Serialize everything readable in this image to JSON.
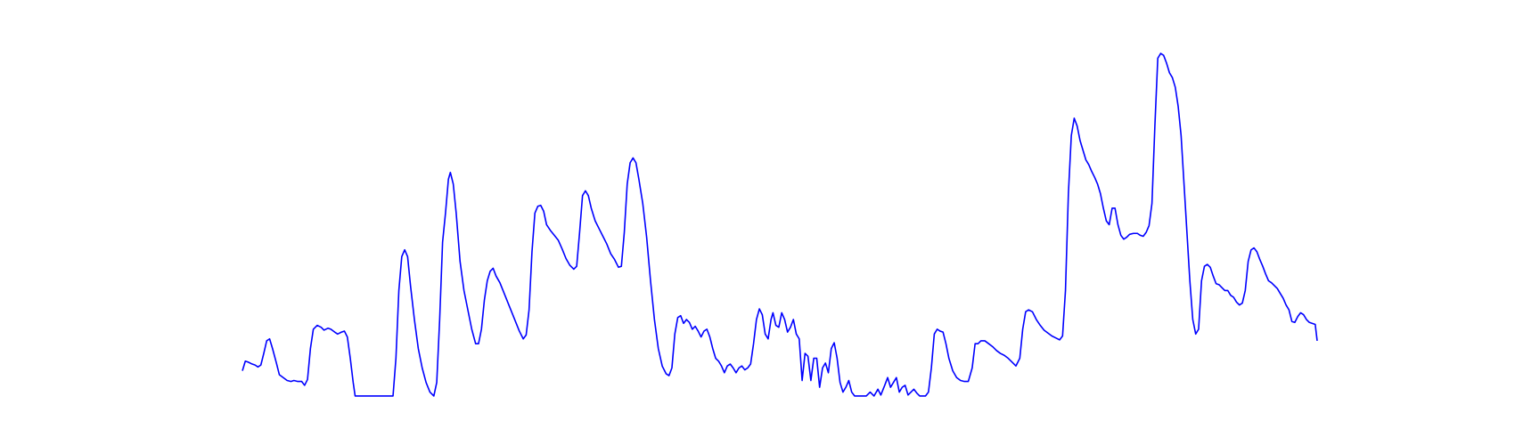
{
  "chart_data": {
    "type": "line",
    "color": "#0000ff",
    "x": [
      250,
      253,
      256,
      260,
      263,
      266,
      269,
      272,
      275,
      278,
      281,
      285,
      288,
      292,
      296,
      300,
      303,
      307,
      311,
      314,
      317,
      320,
      323,
      327,
      331,
      334,
      338,
      341,
      345,
      348,
      352,
      355,
      358,
      361,
      364,
      366,
      370,
      380,
      395,
      405,
      408,
      411,
      414,
      417,
      420,
      423,
      427,
      431,
      435,
      439,
      443,
      447,
      450,
      453,
      456,
      459,
      462,
      464,
      467,
      470,
      474,
      478,
      482,
      486,
      490,
      493,
      496,
      499,
      502,
      505,
      508,
      511,
      515,
      519,
      523,
      527,
      531,
      535,
      539,
      542,
      545,
      548,
      551,
      554,
      557,
      560,
      563,
      567,
      571,
      575,
      579,
      583,
      587,
      591,
      594,
      597,
      600,
      603,
      606,
      609,
      613,
      617,
      621,
      625,
      629,
      633,
      637,
      640,
      643,
      646,
      649,
      652,
      655,
      658,
      662,
      666,
      670,
      674,
      678,
      682,
      686,
      689,
      692,
      695,
      698,
      701,
      704,
      707,
      710,
      713,
      716,
      719,
      722,
      725,
      728,
      731,
      734,
      737,
      740,
      743,
      746,
      749,
      752,
      755,
      758,
      761,
      764,
      767,
      770,
      773,
      776,
      779,
      782,
      785,
      788,
      791,
      794,
      796,
      799,
      802,
      805,
      808,
      811,
      814,
      817,
      820,
      823,
      826,
      829,
      832,
      835,
      838,
      841,
      844,
      847,
      850,
      853,
      856,
      859,
      862,
      865,
      868,
      871,
      874,
      877,
      880,
      885,
      892,
      896,
      900,
      904,
      907,
      911,
      914,
      917,
      920,
      923,
      926,
      929,
      932,
      935,
      938,
      941,
      944,
      947,
      953,
      956,
      959,
      962,
      965,
      968,
      971,
      974,
      977,
      981,
      985,
      989,
      993,
      997,
      1001,
      1004,
      1007,
      1010,
      1014,
      1018,
      1022,
      1026,
      1030,
      1034,
      1038,
      1042,
      1046,
      1050,
      1053,
      1056,
      1059,
      1063,
      1067,
      1071,
      1075,
      1079,
      1083,
      1087,
      1091,
      1094,
      1097,
      1100,
      1103,
      1106,
      1109,
      1112,
      1115,
      1118,
      1121,
      1124,
      1127,
      1130,
      1133,
      1136,
      1139,
      1142,
      1145,
      1148,
      1151,
      1154,
      1157,
      1160,
      1163,
      1167,
      1171,
      1174,
      1177,
      1180,
      1183,
      1186,
      1189,
      1192,
      1195,
      1198,
      1201,
      1204,
      1207,
      1210,
      1213,
      1216,
      1219,
      1222,
      1225,
      1228,
      1231,
      1234,
      1237,
      1240,
      1243,
      1246,
      1249,
      1252,
      1255,
      1258,
      1261,
      1264,
      1267,
      1270,
      1273,
      1276,
      1279,
      1282,
      1285,
      1288,
      1291,
      1294,
      1297,
      1300,
      1303,
      1306,
      1309,
      1312,
      1315,
      1318,
      1321,
      1324,
      1327,
      1330,
      1333,
      1336,
      1339,
      1342,
      1345,
      1348,
      1351,
      1354,
      1356
    ],
    "values": [
      27,
      37,
      36,
      34,
      33,
      31,
      33,
      45,
      58,
      60,
      50,
      35,
      23,
      20,
      17,
      16,
      17,
      16,
      16,
      12,
      18,
      50,
      70,
      74,
      72,
      69,
      71,
      70,
      67,
      65,
      67,
      68,
      62,
      40,
      15,
      1,
      1,
      1,
      1,
      1,
      40,
      110,
      145,
      152,
      145,
      115,
      80,
      50,
      30,
      15,
      5,
      1,
      15,
      80,
      160,
      190,
      225,
      232,
      220,
      190,
      140,
      110,
      90,
      70,
      55,
      55,
      70,
      100,
      120,
      130,
      133,
      125,
      118,
      108,
      98,
      88,
      78,
      68,
      60,
      64,
      90,
      150,
      190,
      197,
      198,
      192,
      178,
      172,
      167,
      162,
      153,
      143,
      136,
      132,
      135,
      170,
      208,
      213,
      208,
      195,
      182,
      174,
      166,
      158,
      148,
      142,
      134,
      135,
      170,
      220,
      242,
      247,
      242,
      225,
      200,
      165,
      120,
      80,
      50,
      32,
      24,
      22,
      30,
      65,
      82,
      84,
      76,
      80,
      77,
      70,
      73,
      68,
      62,
      68,
      70,
      62,
      50,
      40,
      37,
      32,
      25,
      32,
      34,
      30,
      25,
      30,
      32,
      28,
      30,
      34,
      55,
      80,
      91,
      85,
      65,
      60,
      80,
      87,
      74,
      72,
      87,
      80,
      67,
      72,
      80,
      65,
      60,
      17,
      45,
      42,
      17,
      40,
      40,
      10,
      30,
      35,
      25,
      50,
      56,
      40,
      15,
      5,
      10,
      17,
      5,
      1,
      1,
      1,
      5,
      1,
      8,
      2,
      12,
      20,
      10,
      15,
      20,
      5,
      10,
      12,
      2,
      5,
      8,
      4,
      1,
      1,
      5,
      30,
      65,
      70,
      68,
      67,
      55,
      40,
      27,
      20,
      17,
      16,
      16,
      30,
      55,
      55,
      58,
      58,
      55,
      52,
      48,
      45,
      43,
      40,
      36,
      32,
      40,
      70,
      88,
      90,
      88,
      80,
      74,
      69,
      66,
      63,
      61,
      59,
      63,
      110,
      210,
      270,
      288,
      280,
      265,
      255,
      245,
      240,
      233,
      227,
      220,
      210,
      195,
      182,
      178,
      195,
      195,
      178,
      167,
      163,
      165,
      168,
      169,
      169,
      167,
      166,
      170,
      177,
      200,
      280,
      350,
      355,
      353,
      345,
      335,
      330,
      320,
      300,
      270,
      220,
      170,
      120,
      80,
      65,
      70,
      120,
      135,
      137,
      134,
      125,
      117,
      116,
      113,
      110,
      110,
      105,
      103,
      98,
      95,
      97,
      110,
      140,
      152,
      154,
      150,
      142,
      135,
      127,
      120,
      118,
      115,
      112,
      107,
      102,
      95,
      90,
      78,
      77,
      83,
      87,
      85,
      80,
      77,
      76,
      75,
      58
    ],
    "xlim": [
      250,
      1356
    ],
    "ylim": [
      0,
      355
    ]
  }
}
